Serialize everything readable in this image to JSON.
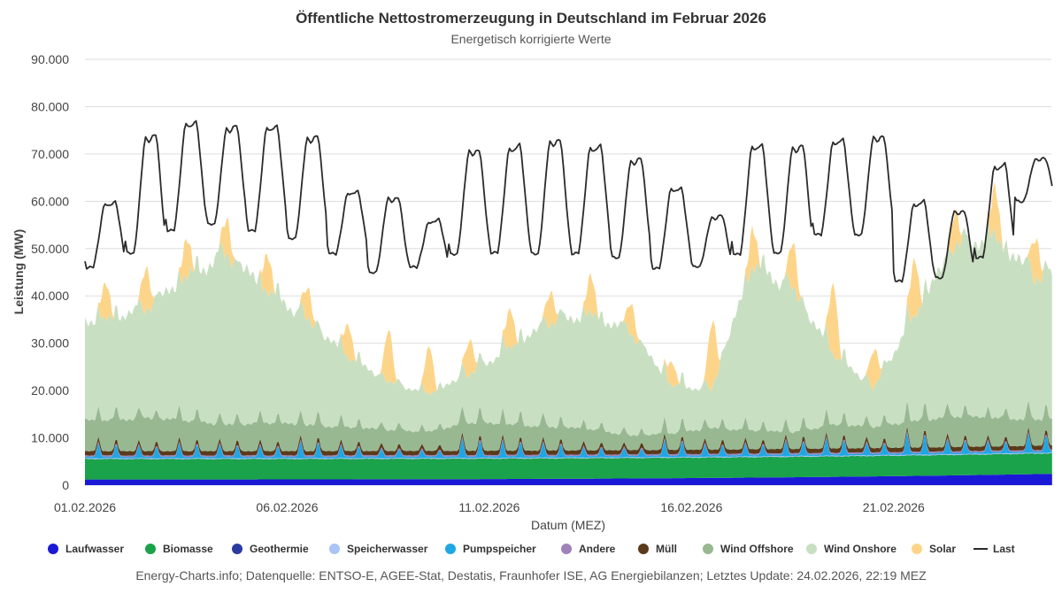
{
  "chart_data": {
    "type": "area",
    "title": "Öffentliche Nettostromerzeugung in Deutschland im Februar 2026",
    "subtitle": "Energetisch korrigierte Werte",
    "xlabel": "Datum (MEZ)",
    "ylabel": "Leistung (MW)",
    "ylim": [
      0,
      90000
    ],
    "xlim_days": [
      1,
      24.9
    ],
    "y_ticks": [
      "0",
      "10.000",
      "20.000",
      "30.000",
      "40.000",
      "50.000",
      "60.000",
      "70.000",
      "80.000",
      "90.000"
    ],
    "y_tick_values": [
      0,
      10000,
      20000,
      30000,
      40000,
      50000,
      60000,
      70000,
      80000,
      90000
    ],
    "x_ticks": [
      "01.02.2026",
      "06.02.2026",
      "11.02.2026",
      "16.02.2026",
      "21.02.2026"
    ],
    "x_tick_days": [
      1,
      6,
      11,
      16,
      21
    ],
    "grid": true,
    "legend_position": "bottom",
    "days": [
      1,
      2,
      3,
      4,
      5,
      6,
      7,
      8,
      9,
      10,
      11,
      12,
      13,
      14,
      15,
      16,
      17,
      18,
      19,
      20,
      21,
      22,
      23,
      24
    ],
    "series": [
      {
        "name": "Laufwasser",
        "color": "#1a1ad6",
        "stacked": true,
        "base": 1200,
        "amp": 150,
        "noon_peak": 0,
        "trend_end": 2400
      },
      {
        "name": "Biomasse",
        "color": "#1aa34a",
        "stacked": true,
        "base": 4300,
        "amp": 100,
        "noon_peak": 0
      },
      {
        "name": "Geothermie",
        "color": "#2b3aa0",
        "stacked": true,
        "base": 30,
        "amp": 0,
        "noon_peak": 0
      },
      {
        "name": "Speicherwasser",
        "color": "#a9c4f5",
        "stacked": true,
        "base": 150,
        "amp": 50,
        "noon_peak": 0
      },
      {
        "name": "Pumpspeicher",
        "color": "#1ea7e3",
        "stacked": true,
        "daily_peaks": [
          3000,
          2500,
          3000,
          2800,
          2500,
          3500,
          2500,
          1800,
          1500,
          4000,
          3500,
          3000,
          2000,
          1800,
          3500,
          2500,
          2500,
          3200,
          3500,
          2500,
          4500,
          3000,
          2500,
          4000
        ],
        "base": 300
      },
      {
        "name": "Andere",
        "color": "#9e82b8",
        "stacked": true,
        "base": 300,
        "amp": 50,
        "noon_peak": 0
      },
      {
        "name": "Müll",
        "color": "#5a3a1a",
        "stacked": true,
        "base": 900,
        "amp": 100,
        "noon_peak": 0
      },
      {
        "name": "Wind Offshore",
        "color": "#98b892",
        "stacked": true,
        "daily_totals": [
          6500,
          7000,
          6500,
          5500,
          6000,
          5500,
          5000,
          4500,
          4000,
          6000,
          5500,
          5000,
          4500,
          3000,
          3500,
          4500,
          4000,
          3500,
          5000,
          4500,
          5500,
          6500,
          6000,
          5500
        ]
      },
      {
        "name": "Wind Onshore",
        "color": "#c9dfc2",
        "stacked": true,
        "daily_totals": [
          21000,
          23000,
          30000,
          36000,
          28000,
          22000,
          15000,
          10000,
          8000,
          10000,
          16000,
          22000,
          24000,
          22000,
          10000,
          8000,
          35000,
          30000,
          15000,
          8000,
          22000,
          36000,
          38000,
          30000
        ]
      },
      {
        "name": "Solar",
        "color": "#fdd58a",
        "stacked": true,
        "daily_peaks": [
          7500,
          9000,
          8000,
          7500,
          8000,
          6500,
          7000,
          11000,
          10000,
          7500,
          8000,
          7000,
          8000,
          6500,
          5000,
          14000,
          8500,
          9500,
          15000,
          8000,
          12000,
          7500,
          10000,
          9000
        ]
      },
      {
        "name": "Last",
        "color": "#2b2b2b",
        "stacked": false,
        "daily_peaks": [
          60000,
          74000,
          77000,
          76000,
          76000,
          74000,
          62000,
          61000,
          56000,
          71000,
          72000,
          73000,
          72000,
          69000,
          63000,
          57000,
          72000,
          72000,
          73000,
          74000,
          60000,
          58000,
          68000,
          69000
        ],
        "daily_lows": [
          46000,
          49000,
          54000,
          55000,
          54000,
          52000,
          49000,
          45000,
          46000,
          49000,
          49000,
          49000,
          49000,
          48000,
          46000,
          46000,
          49000,
          49000,
          53000,
          53000,
          43000,
          44000,
          48000,
          60000
        ]
      }
    ],
    "source": "Energy-Charts.info; Datenquelle: ENTSO-E, AGEE-Stat, Destatis, Fraunhofer ISE, AG Energiebilanzen; Letztes Update: 24.02.2026, 22:19 MEZ"
  }
}
